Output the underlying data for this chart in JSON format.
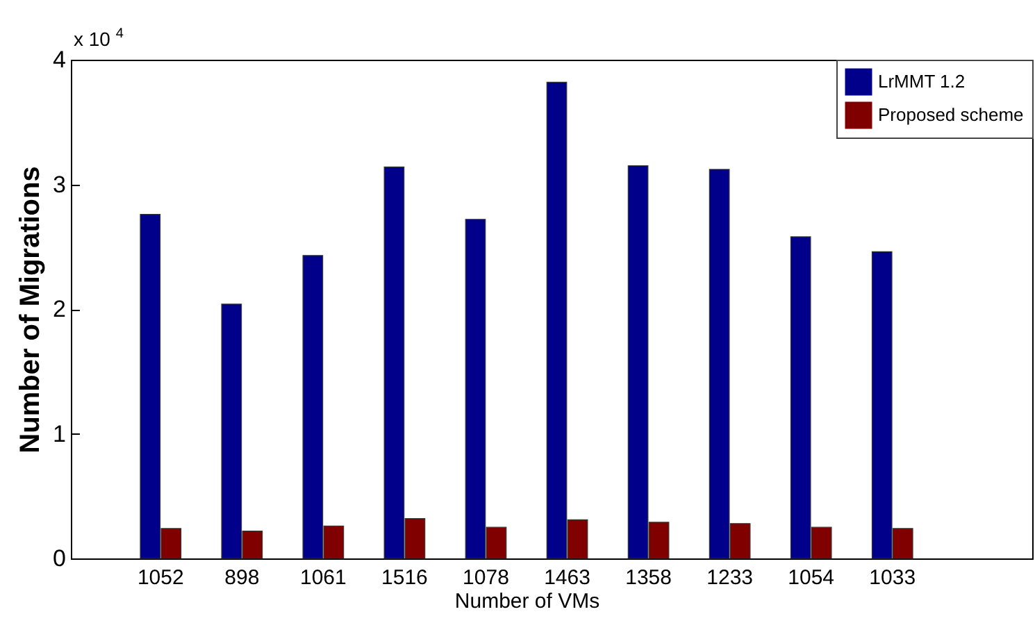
{
  "chart_data": {
    "type": "bar",
    "xlabel": "Number of VMs",
    "ylabel": "Number of Migrations",
    "categories": [
      "1052",
      "898",
      "1061",
      "1516",
      "1078",
      "1463",
      "1358",
      "1233",
      "1054",
      "1033"
    ],
    "series": [
      {
        "name": "LrMMT 1.2",
        "color": "#00008b",
        "values": [
          2.76,
          2.04,
          2.43,
          3.14,
          2.72,
          3.82,
          3.15,
          3.12,
          2.58,
          2.46
        ]
      },
      {
        "name": "Proposed scheme",
        "color": "#800000",
        "values": [
          0.24,
          0.22,
          0.26,
          0.32,
          0.25,
          0.31,
          0.29,
          0.28,
          0.25,
          0.24
        ]
      }
    ],
    "ylim": [
      0,
      4
    ],
    "yticks": [
      0,
      1,
      2,
      3,
      4
    ],
    "legend": "top right",
    "annotations": [
      "x 10$^{4}$"
    ]
  }
}
